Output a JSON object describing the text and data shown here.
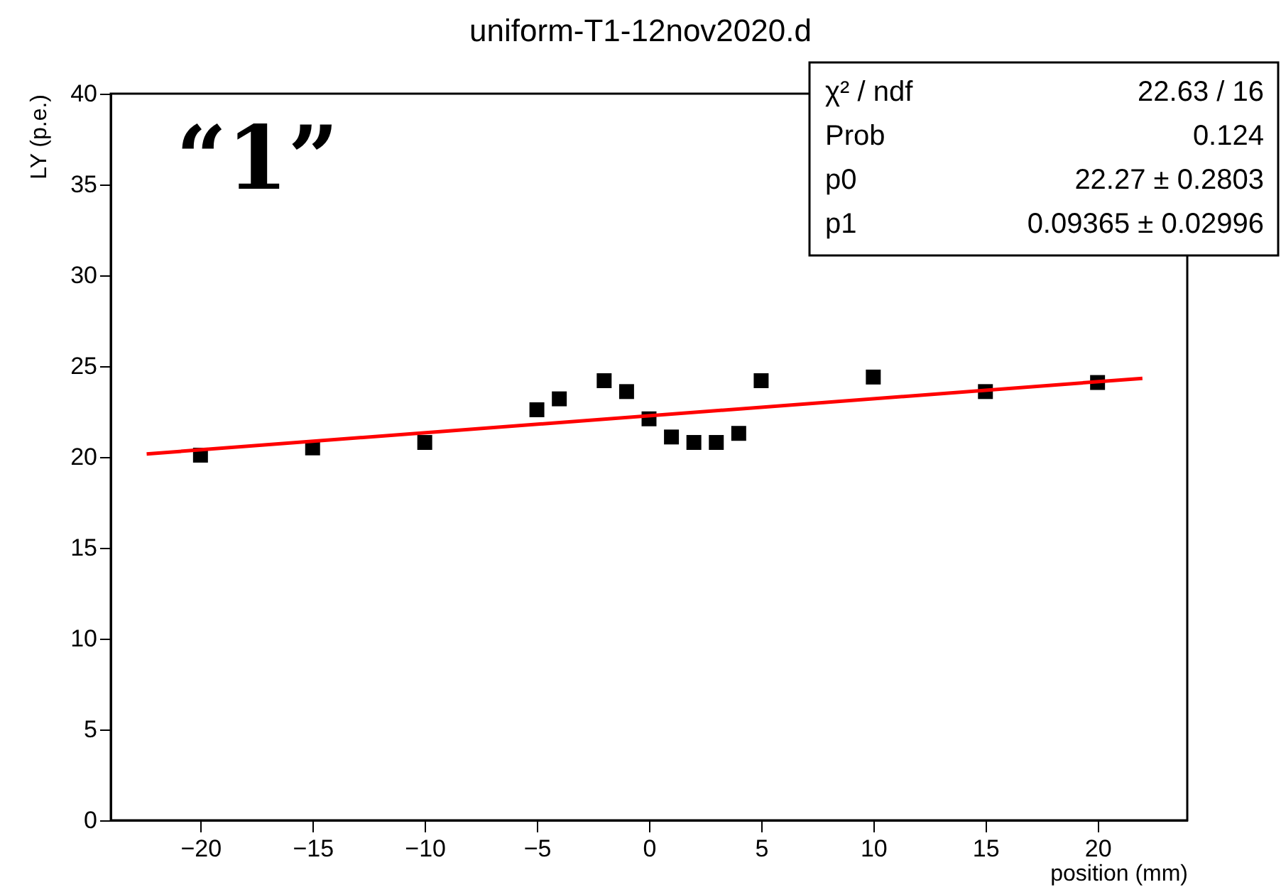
{
  "chart_data": {
    "type": "scatter",
    "title": "uniform-T1-12nov2020.d",
    "xlabel": "position (mm)",
    "ylabel": "LY (p.e.)",
    "x": [
      -20,
      -15,
      -10,
      -5,
      -4,
      -2,
      -1,
      0,
      1,
      2,
      3,
      4,
      5,
      10,
      15,
      20
    ],
    "series": [
      {
        "marker": "square",
        "color": "#000000",
        "values": [
          20.1,
          20.5,
          20.8,
          22.6,
          23.2,
          24.2,
          23.6,
          22.1,
          21.1,
          20.8,
          20.8,
          21.3,
          24.2,
          24.4,
          23.6,
          24.1
        ]
      },
      {
        "type": "line",
        "color": "#ff0000",
        "x": [
          -22.4,
          22.0
        ],
        "values": [
          20.17,
          24.33
        ]
      }
    ],
    "xlim": [
      -24,
      24
    ],
    "xticks": [
      -20,
      -15,
      -10,
      -5,
      0,
      5,
      10,
      15,
      20
    ],
    "ylim": [
      0,
      40
    ],
    "yticks": [
      0,
      5,
      10,
      15,
      20,
      25,
      30,
      35,
      40
    ],
    "grid": false,
    "annotations": [
      "“1”",
      "χ² / ndf",
      "22.63 / 16",
      "Prob",
      "0.124",
      "p0",
      "22.27 ± 0.2803",
      "p1",
      "0.09365 ± 0.02996"
    ]
  }
}
